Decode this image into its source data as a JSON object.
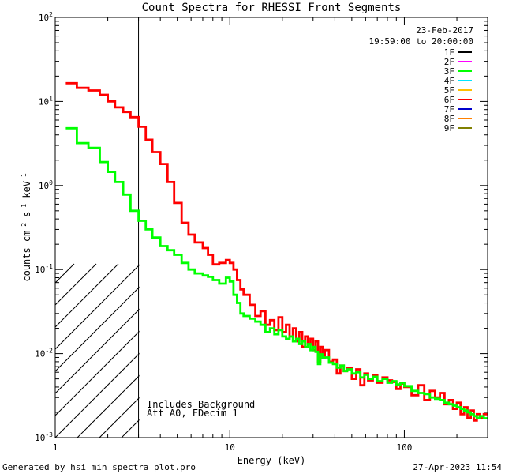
{
  "chart_data": {
    "type": "line",
    "title": "Count Spectra for RHESSI Front Segments",
    "xlabel": "Energy (keV)",
    "ylabel": "counts cm-2 s-1 keV-1",
    "xscale": "log",
    "yscale": "log",
    "xlim": [
      1,
      300
    ],
    "ylim": [
      0.001,
      100
    ],
    "x_ticks": [
      {
        "value": 1,
        "label": "1"
      },
      {
        "value": 10,
        "label": "10"
      },
      {
        "value": 100,
        "label": "100"
      }
    ],
    "y_ticks": [
      {
        "value": 0.001,
        "base": "10",
        "exp": "-3"
      },
      {
        "value": 0.01,
        "base": "10",
        "exp": "-2"
      },
      {
        "value": 0.1,
        "base": "10",
        "exp": "-1"
      },
      {
        "value": 1,
        "base": "10",
        "exp": "0"
      },
      {
        "value": 10,
        "base": "10",
        "exp": "1"
      },
      {
        "value": 100,
        "base": "10",
        "exp": "2"
      }
    ],
    "excluded_region_max_keV": 3,
    "date": "23-Feb-2017",
    "time_range": "19:59:00 to 20:00:00",
    "legend": [
      {
        "label": "1F",
        "color": "#000000"
      },
      {
        "label": "2F",
        "color": "#ff00ff"
      },
      {
        "label": "3F",
        "color": "#00ff00"
      },
      {
        "label": "4F",
        "color": "#00e5ff"
      },
      {
        "label": "5F",
        "color": "#ffc000"
      },
      {
        "label": "6F",
        "color": "#ff0000"
      },
      {
        "label": "7F",
        "color": "#0000cc"
      },
      {
        "label": "8F",
        "color": "#ff8000"
      },
      {
        "label": "9F",
        "color": "#808000"
      }
    ],
    "annotations": [
      "Includes Background",
      "Att A0, FDecim 1"
    ],
    "series": [
      {
        "name": "6F",
        "color": "#ff0000",
        "x": [
          1.15,
          1.33,
          1.55,
          1.8,
          2.0,
          2.2,
          2.45,
          2.7,
          3.0,
          3.3,
          3.6,
          4.0,
          4.4,
          4.8,
          5.3,
          5.8,
          6.3,
          7.0,
          7.5,
          8.0,
          8.7,
          9.5,
          10.0,
          10.5,
          11.0,
          11.5,
          12.0,
          13.0,
          14.0,
          15.0,
          16.0,
          17.0,
          18.0,
          19.0,
          20.0,
          21.0,
          22.0,
          23.0,
          24.0,
          25.0,
          26.0,
          27.0,
          28.0,
          29.0,
          30.0,
          31.0,
          32.0,
          33.0,
          34.0,
          35.0,
          37.0,
          39.0,
          41.0,
          43.0,
          45.0,
          47.0,
          50.0,
          53.0,
          56.0,
          59.0,
          62.0,
          66.0,
          70.0,
          75.0,
          80.0,
          85.0,
          90.0,
          95.0,
          100.0,
          110.0,
          120.0,
          130.0,
          140.0,
          150.0,
          160.0,
          170.0,
          180.0,
          190.0,
          200.0,
          210.0,
          220.0,
          230.0,
          240.0,
          250.0,
          260.0,
          270.0,
          285.0
        ],
        "y": [
          16.5,
          14.5,
          13.5,
          12.0,
          10.0,
          8.5,
          7.5,
          6.5,
          5.0,
          3.5,
          2.5,
          1.8,
          1.1,
          0.62,
          0.36,
          0.26,
          0.21,
          0.18,
          0.15,
          0.115,
          0.12,
          0.13,
          0.12,
          0.1,
          0.075,
          0.058,
          0.05,
          0.038,
          0.028,
          0.032,
          0.022,
          0.025,
          0.019,
          0.027,
          0.018,
          0.022,
          0.016,
          0.02,
          0.014,
          0.018,
          0.012,
          0.016,
          0.013,
          0.015,
          0.011,
          0.014,
          0.008,
          0.012,
          0.0095,
          0.011,
          0.008,
          0.0085,
          0.0058,
          0.0072,
          0.0062,
          0.0068,
          0.005,
          0.0065,
          0.0042,
          0.0058,
          0.0048,
          0.0055,
          0.0045,
          0.0052,
          0.0048,
          0.0046,
          0.0038,
          0.0044,
          0.004,
          0.0032,
          0.0042,
          0.0028,
          0.0036,
          0.003,
          0.0034,
          0.0025,
          0.0028,
          0.0022,
          0.0026,
          0.0019,
          0.0023,
          0.0017,
          0.0021,
          0.0016,
          0.0019,
          0.0017,
          0.0019
        ]
      },
      {
        "name": "3F",
        "color": "#00ff00",
        "x": [
          1.15,
          1.33,
          1.55,
          1.8,
          2.0,
          2.2,
          2.45,
          2.7,
          3.0,
          3.3,
          3.6,
          4.0,
          4.4,
          4.8,
          5.3,
          5.8,
          6.3,
          7.0,
          7.5,
          8.0,
          8.7,
          9.5,
          10.0,
          10.5,
          11.0,
          11.5,
          12.0,
          13.0,
          14.0,
          15.0,
          16.0,
          17.0,
          18.0,
          19.0,
          20.0,
          21.0,
          22.0,
          23.0,
          24.0,
          25.0,
          26.0,
          27.0,
          28.0,
          29.0,
          30.0,
          31.0,
          32.0,
          33.0,
          34.0,
          35.0,
          37.0,
          39.0,
          41.0,
          43.0,
          45.0,
          47.0,
          50.0,
          53.0,
          56.0,
          59.0,
          62.0,
          66.0,
          70.0,
          75.0,
          80.0,
          85.0,
          90.0,
          95.0,
          100.0,
          110.0,
          120.0,
          130.0,
          140.0,
          150.0,
          160.0,
          170.0,
          180.0,
          190.0,
          200.0,
          210.0,
          220.0,
          230.0,
          240.0,
          250.0,
          260.0,
          270.0,
          285.0
        ],
        "y": [
          4.8,
          3.2,
          2.8,
          1.9,
          1.45,
          1.1,
          0.78,
          0.5,
          0.38,
          0.3,
          0.24,
          0.19,
          0.17,
          0.15,
          0.12,
          0.1,
          0.09,
          0.085,
          0.082,
          0.075,
          0.068,
          0.08,
          0.072,
          0.05,
          0.04,
          0.03,
          0.028,
          0.026,
          0.024,
          0.022,
          0.018,
          0.02,
          0.017,
          0.019,
          0.016,
          0.015,
          0.016,
          0.014,
          0.015,
          0.013,
          0.014,
          0.012,
          0.013,
          0.011,
          0.012,
          0.0105,
          0.0075,
          0.0098,
          0.0088,
          0.009,
          0.0078,
          0.0075,
          0.0068,
          0.0072,
          0.0062,
          0.0065,
          0.0058,
          0.006,
          0.0052,
          0.0056,
          0.005,
          0.0053,
          0.0047,
          0.005,
          0.0045,
          0.0047,
          0.0043,
          0.0045,
          0.0041,
          0.0036,
          0.0034,
          0.0033,
          0.003,
          0.0029,
          0.0028,
          0.0026,
          0.0025,
          0.0024,
          0.0023,
          0.0022,
          0.0021,
          0.002,
          0.0019,
          0.0018,
          0.0017,
          0.0018,
          0.0017
        ]
      }
    ]
  },
  "footer": {
    "generated_by": "Generated by hsi_min_spectra_plot.pro",
    "timestamp": "27-Apr-2023 11:54"
  }
}
